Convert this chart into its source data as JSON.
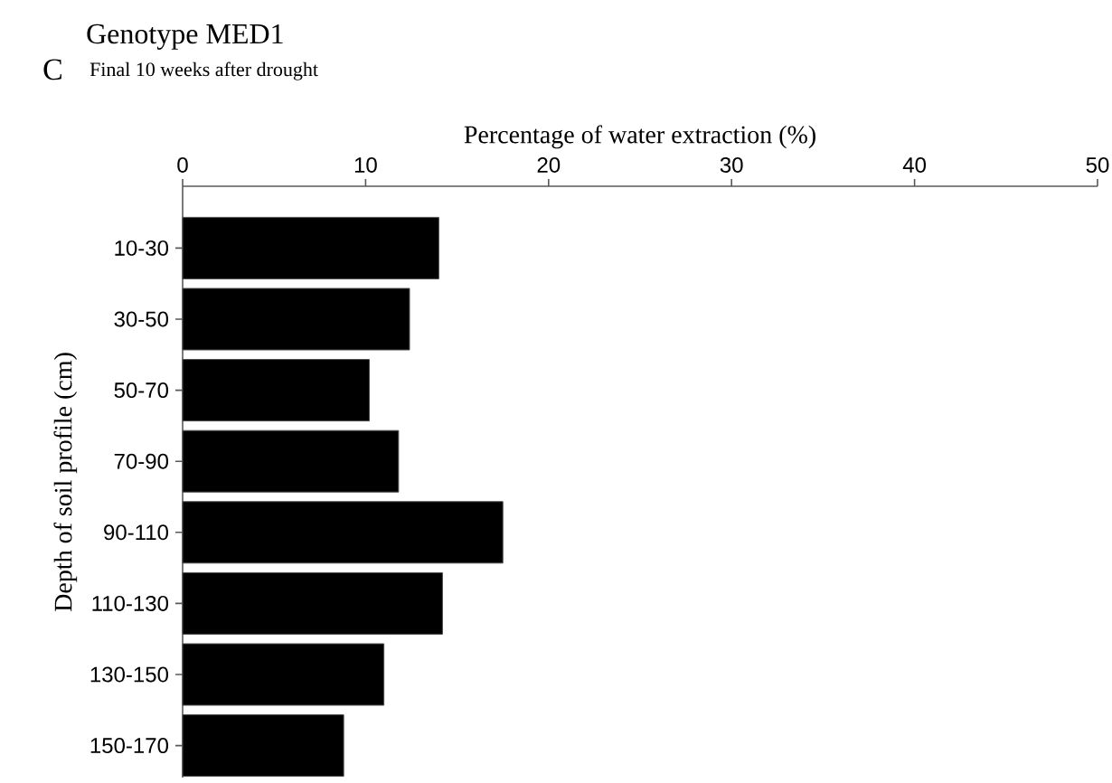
{
  "chart_data": {
    "type": "bar",
    "orientation": "horizontal",
    "title": "Genotype MED1",
    "subtitle": "Final 10 weeks after drought",
    "xlabel": "Percentage of water extraction (%)",
    "ylabel": "Depth of soil profile (cm)",
    "annotations": [
      "C"
    ],
    "categories": [
      "10-30",
      "30-50",
      "50-70",
      "70-90",
      "90-110",
      "110-130",
      "130-150",
      "150-170"
    ],
    "values": [
      14.0,
      12.4,
      10.2,
      11.8,
      17.5,
      14.2,
      11.0,
      8.8
    ],
    "color": "#000000",
    "xlim": [
      0,
      50
    ],
    "xticks": [
      0,
      10,
      20,
      30,
      40,
      50
    ]
  }
}
